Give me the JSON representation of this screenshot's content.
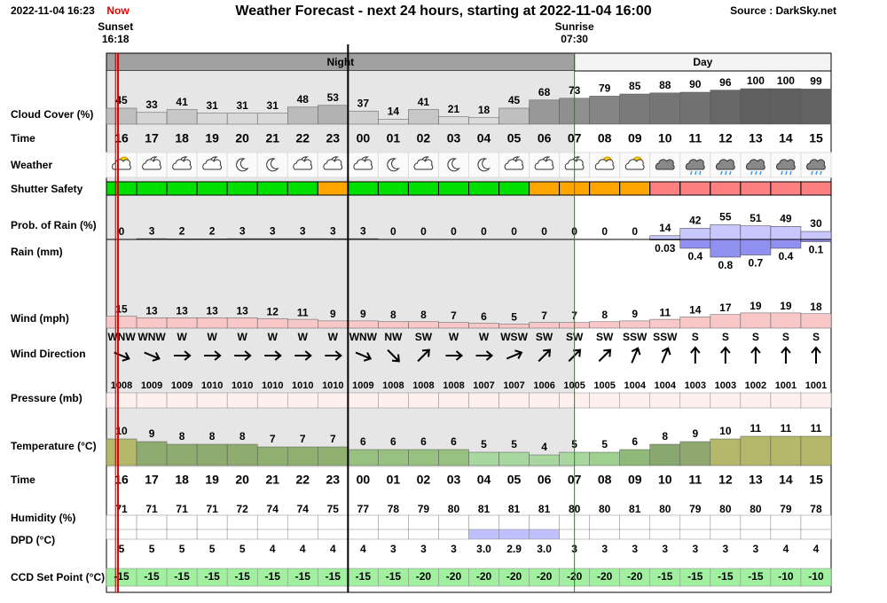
{
  "header": {
    "timestamp": "2022-11-04 16:23",
    "now": "Now",
    "title": "Weather Forecast - next 24 hours, starting at 2022-11-04 16:00",
    "source": "Source : DarkSky.net"
  },
  "sun": {
    "sunset_label": "Sunset",
    "sunset": "16:18",
    "sunrise_label": "Sunrise",
    "sunrise": "07:30"
  },
  "bands": {
    "night": "Night",
    "day": "Day"
  },
  "times": [
    "16",
    "17",
    "18",
    "19",
    "20",
    "21",
    "22",
    "23",
    "00",
    "01",
    "02",
    "03",
    "04",
    "05",
    "06",
    "07",
    "08",
    "09",
    "10",
    "11",
    "12",
    "13",
    "14",
    "15"
  ],
  "rows": {
    "cloud": {
      "label": "Cloud Cover (%)",
      "values": [
        45,
        33,
        41,
        31,
        31,
        31,
        48,
        53,
        37,
        14,
        41,
        21,
        18,
        45,
        68,
        73,
        79,
        85,
        88,
        90,
        96,
        100,
        100,
        99
      ]
    },
    "time_label": "Time",
    "weather": {
      "label": "Weather",
      "icons": [
        "sun-cloud",
        "moon-cloud",
        "moon-cloud",
        "moon-cloud",
        "moon",
        "moon",
        "moon-cloud",
        "moon-cloud",
        "moon-cloud",
        "moon",
        "moon-cloud",
        "moon",
        "moon",
        "moon-cloud",
        "moon-cloud",
        "moon-cloud",
        "sun-cloud",
        "sun-cloud",
        "cloud",
        "rain-cloud",
        "rain-cloud",
        "rain-cloud",
        "rain-cloud",
        "rain-cloud"
      ]
    },
    "shutter": {
      "label": "Shutter Safety",
      "colors": [
        "#00e000",
        "#00e000",
        "#00e000",
        "#00e000",
        "#00e000",
        "#00e000",
        "#00e000",
        "#ffa500",
        "#00e000",
        "#00e000",
        "#00e000",
        "#00e000",
        "#00e000",
        "#00e000",
        "#ffa500",
        "#ffa500",
        "#ffa500",
        "#ffa500",
        "#ff8080",
        "#ff8080",
        "#ff8080",
        "#ff8080",
        "#ff8080",
        "#ff8080"
      ]
    },
    "rain_prob": {
      "label": "Prob. of Rain (%)",
      "values": [
        0,
        3,
        2,
        2,
        3,
        3,
        3,
        3,
        3,
        0,
        0,
        0,
        0,
        0,
        0,
        0,
        0,
        0,
        14,
        42,
        55,
        51,
        49,
        30
      ]
    },
    "rain": {
      "label": "Rain (mm)",
      "values": [
        null,
        null,
        null,
        null,
        null,
        null,
        null,
        null,
        null,
        null,
        null,
        null,
        null,
        null,
        null,
        null,
        null,
        null,
        0.03,
        0.4,
        0.8,
        0.7,
        0.4,
        0.1
      ]
    },
    "wind": {
      "label": "Wind (mph)",
      "values": [
        15,
        13,
        13,
        13,
        13,
        12,
        11,
        9,
        9,
        8,
        8,
        7,
        6,
        5,
        7,
        7,
        8,
        9,
        11,
        14,
        17,
        19,
        19,
        18
      ]
    },
    "wind_dir": {
      "label": "Wind Direction",
      "values": [
        "WNW",
        "WNW",
        "W",
        "W",
        "W",
        "W",
        "W",
        "W",
        "WNW",
        "NW",
        "SW",
        "W",
        "W",
        "WSW",
        "SW",
        "SW",
        "SW",
        "SSW",
        "SSW",
        "S",
        "S",
        "S",
        "S",
        "S"
      ],
      "degrees": [
        292.5,
        292.5,
        270,
        270,
        270,
        270,
        270,
        270,
        292.5,
        315,
        225,
        270,
        270,
        247.5,
        225,
        225,
        225,
        202.5,
        202.5,
        180,
        180,
        180,
        180,
        180
      ]
    },
    "pressure": {
      "label": "Pressure (mb)",
      "values": [
        1008,
        1009,
        1009,
        1010,
        1010,
        1010,
        1010,
        1010,
        1009,
        1008,
        1008,
        1008,
        1007,
        1007,
        1006,
        1005,
        1005,
        1004,
        1004,
        1003,
        1003,
        1002,
        1001,
        1001
      ]
    },
    "temperature": {
      "label": "Temperature (°C)",
      "values": [
        10,
        9,
        8,
        8,
        8,
        7,
        7,
        7,
        6,
        6,
        6,
        6,
        5,
        5,
        4,
        5,
        5,
        6,
        8,
        9,
        10,
        11,
        11,
        11
      ],
      "colors": [
        "#b5b86a",
        "#8fac70",
        "#8fac70",
        "#8fac70",
        "#8fac70",
        "#90b070",
        "#90b070",
        "#90b070",
        "#98c080",
        "#98c080",
        "#98c080",
        "#98c080",
        "#a8d8a0",
        "#a8d8a0",
        "#a8d8a0",
        "#a8d8a0",
        "#a0d090",
        "#90b878",
        "#88a870",
        "#90a870",
        "#b5b86a",
        "#b5b86a",
        "#b5b86a",
        "#b5b86a"
      ]
    },
    "humidity": {
      "label": "Humidity (%)",
      "values": [
        71,
        71,
        71,
        71,
        72,
        74,
        74,
        75,
        77,
        78,
        79,
        80,
        81,
        81,
        81,
        80,
        80,
        81,
        80,
        79,
        80,
        80,
        79,
        78
      ]
    },
    "dpd": {
      "label": "DPD (°C)",
      "values": [
        5,
        5,
        5,
        5,
        5,
        4,
        4,
        4,
        4,
        3,
        3,
        3,
        3.0,
        2.9,
        3.0,
        3,
        3,
        3,
        3,
        3,
        3,
        3,
        4,
        4
      ],
      "value_labels": [
        "5",
        "5",
        "5",
        "5",
        "5",
        "4",
        "4",
        "4",
        "4",
        "3",
        "3",
        "3",
        "3.0",
        "2.9",
        "3.0",
        "3",
        "3",
        "3",
        "3",
        "3",
        "3",
        "3",
        "4",
        "4"
      ],
      "colors": [
        "#ffffff",
        "#ffffff",
        "#ffffff",
        "#ffffff",
        "#ffffff",
        "#ffffff",
        "#ffffff",
        "#ffffff",
        "#ffffff",
        "#ffffff",
        "#ffffff",
        "#ffffff",
        "#c0c0ff",
        "#c0c0ff",
        "#c0c0ff",
        "#ffffff",
        "#ffffff",
        "#ffffff",
        "#ffffff",
        "#ffffff",
        "#ffffff",
        "#ffffff",
        "#ffffff",
        "#ffffff"
      ]
    },
    "ccd": {
      "label": "CCD Set Point (°C)",
      "values": [
        -15,
        -15,
        -15,
        -15,
        -15,
        -15,
        -15,
        -15,
        -15,
        -15,
        -20,
        -20,
        -20,
        -20,
        -20,
        -20,
        -20,
        -20,
        -15,
        -15,
        -15,
        -15,
        -10,
        -10
      ],
      "color": "#a0f0a0"
    }
  }
}
